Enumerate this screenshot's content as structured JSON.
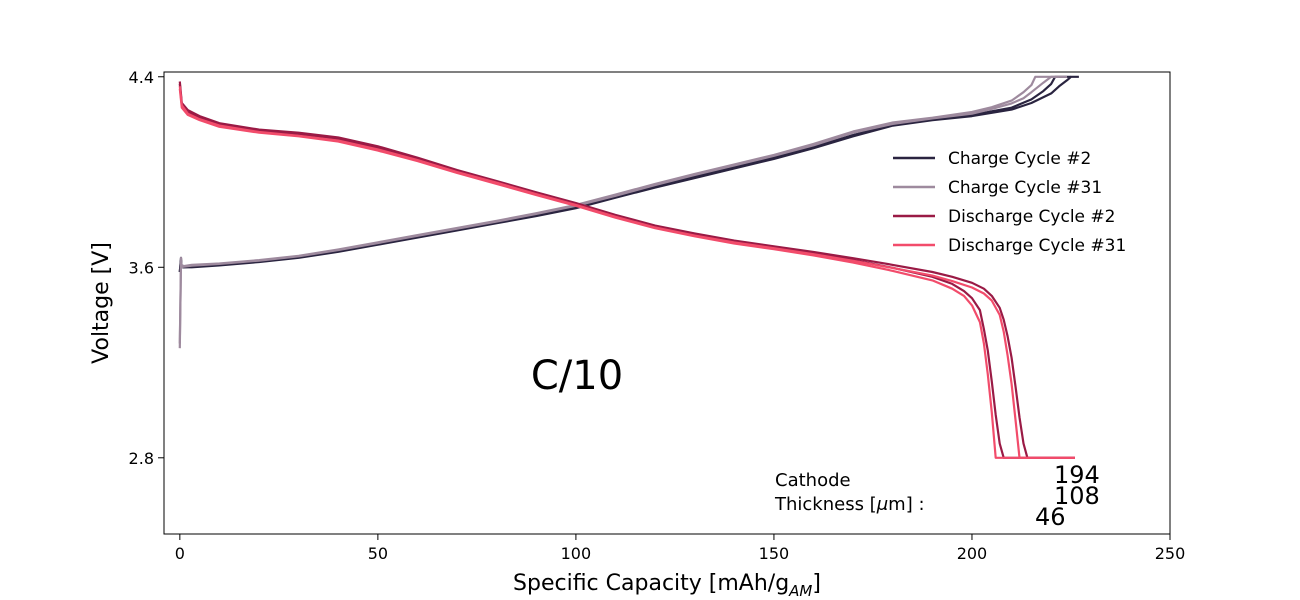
{
  "chart_data": {
    "type": "line",
    "title": "",
    "xlabel": "Specific Capacity [mAh/g",
    "xlabel_subscript": "AM",
    "xlabel_close": "]",
    "ylabel": "Voltage [V]",
    "xlim": [
      -4,
      250
    ],
    "ylim": [
      2.48,
      4.42
    ],
    "xticks": [
      0,
      50,
      100,
      150,
      200,
      250
    ],
    "yticks": [
      2.8,
      3.6,
      4.4
    ],
    "grid": false,
    "legend_position": "upper right",
    "annotation": "C/10",
    "thickness_label_line1": "Cathode",
    "thickness_label_line2": "Thickness [",
    "thickness_label_mu": "μ",
    "thickness_label_line2_end": "m] :",
    "thickness_values": [
      "194",
      "108",
      "46"
    ],
    "series": [
      {
        "name": "Charge Cycle #2",
        "color": "#2a2440",
        "variants": [
          {
            "x": [
              0,
              0.3,
              0.4,
              1,
              3,
              10,
              20,
              30,
              40,
              50,
              60,
              70,
              80,
              90,
              100,
              110,
              120,
              130,
              140,
              150,
              160,
              170,
              180,
              190,
              200,
              210,
              215,
              220,
              222,
              224,
              225,
              227
            ],
            "y": [
              3.58,
              3.64,
              3.61,
              3.6,
              3.6,
              3.608,
              3.622,
              3.64,
              3.665,
              3.695,
              3.725,
              3.755,
              3.785,
              3.815,
              3.848,
              3.892,
              3.935,
              3.975,
              4.015,
              4.055,
              4.1,
              4.15,
              4.195,
              4.218,
              4.235,
              4.262,
              4.29,
              4.33,
              4.36,
              4.385,
              4.4,
              4.4
            ]
          },
          {
            "x": [
              0,
              0.3,
              0.4,
              1,
              3,
              10,
              20,
              30,
              40,
              50,
              60,
              70,
              80,
              90,
              100,
              110,
              120,
              130,
              140,
              150,
              160,
              170,
              180,
              190,
              200,
              210,
              215,
              218,
              220,
              221,
              223,
              225
            ],
            "y": [
              3.58,
              3.63,
              3.6,
              3.6,
              3.603,
              3.61,
              3.625,
              3.643,
              3.668,
              3.698,
              3.728,
              3.758,
              3.788,
              3.818,
              3.852,
              3.896,
              3.94,
              3.98,
              4.02,
              4.06,
              4.105,
              4.155,
              4.198,
              4.222,
              4.24,
              4.27,
              4.305,
              4.34,
              4.37,
              4.4,
              4.4,
              4.4
            ]
          }
        ]
      },
      {
        "name": "Charge Cycle #31",
        "color": "#9e8a9e",
        "variants": [
          {
            "x": [
              0,
              0.3,
              0.4,
              1,
              3,
              10,
              20,
              30,
              40,
              50,
              60,
              70,
              80,
              90,
              100,
              110,
              120,
              130,
              140,
              150,
              160,
              170,
              180,
              190,
              200,
              205,
              210,
              213,
              215,
              216,
              218,
              222
            ],
            "y": [
              3.26,
              3.64,
              3.61,
              3.605,
              3.61,
              3.616,
              3.63,
              3.648,
              3.675,
              3.705,
              3.735,
              3.765,
              3.795,
              3.827,
              3.862,
              3.905,
              3.95,
              3.992,
              4.032,
              4.072,
              4.118,
              4.17,
              4.208,
              4.228,
              4.252,
              4.272,
              4.3,
              4.335,
              4.365,
              4.4,
              4.4,
              4.4
            ]
          },
          {
            "x": [
              0,
              0.3,
              0.4,
              1,
              3,
              10,
              20,
              30,
              40,
              50,
              60,
              70,
              80,
              90,
              100,
              110,
              120,
              130,
              140,
              150,
              160,
              170,
              180,
              190,
              200,
              205,
              210,
              213,
              215,
              218,
              220,
              224
            ],
            "y": [
              3.28,
              3.62,
              3.6,
              3.603,
              3.607,
              3.614,
              3.628,
              3.646,
              3.672,
              3.702,
              3.732,
              3.762,
              3.792,
              3.824,
              3.858,
              3.9,
              3.945,
              3.988,
              4.028,
              4.068,
              4.112,
              4.165,
              4.202,
              4.225,
              4.245,
              4.265,
              4.288,
              4.31,
              4.335,
              4.375,
              4.4,
              4.4
            ]
          }
        ]
      },
      {
        "name": "Discharge Cycle #2",
        "color": "#9a1a45",
        "variants": [
          {
            "x": [
              0,
              0.5,
              2,
              5,
              10,
              20,
              30,
              40,
              50,
              60,
              70,
              80,
              90,
              100,
              110,
              120,
              130,
              140,
              150,
              160,
              170,
              180,
              190,
              195,
              200,
              203,
              205,
              207,
              208,
              209,
              210,
              211,
              212,
              213,
              214,
              226
            ],
            "y": [
              4.38,
              4.29,
              4.26,
              4.235,
              4.205,
              4.178,
              4.165,
              4.145,
              4.108,
              4.06,
              4.008,
              3.962,
              3.915,
              3.87,
              3.82,
              3.775,
              3.742,
              3.712,
              3.688,
              3.664,
              3.638,
              3.61,
              3.58,
              3.56,
              3.535,
              3.51,
              3.48,
              3.43,
              3.38,
              3.31,
              3.22,
              3.1,
              2.97,
              2.86,
              2.8,
              2.8
            ]
          },
          {
            "x": [
              0,
              0.5,
              2,
              5,
              10,
              20,
              30,
              40,
              50,
              60,
              70,
              80,
              90,
              100,
              110,
              120,
              130,
              140,
              150,
              160,
              170,
              180,
              190,
              195,
              198,
              200,
              202,
              203,
              204,
              205,
              206,
              207,
              208,
              226
            ],
            "y": [
              4.37,
              4.28,
              4.25,
              4.23,
              4.2,
              4.175,
              4.16,
              4.14,
              4.102,
              4.054,
              4.002,
              3.956,
              3.91,
              3.866,
              3.818,
              3.772,
              3.74,
              3.71,
              3.685,
              3.66,
              3.63,
              3.598,
              3.56,
              3.53,
              3.5,
              3.47,
              3.42,
              3.34,
              3.25,
              3.12,
              2.98,
              2.86,
              2.8,
              2.8
            ]
          }
        ]
      },
      {
        "name": "Discharge Cycle #31",
        "color": "#f24c6b",
        "variants": [
          {
            "x": [
              0,
              0.5,
              2,
              5,
              10,
              20,
              30,
              40,
              50,
              60,
              70,
              80,
              90,
              100,
              110,
              120,
              130,
              140,
              150,
              160,
              170,
              180,
              190,
              195,
              200,
              203,
              205,
              207,
              208,
              209,
              210,
              211,
              212,
              226
            ],
            "y": [
              4.36,
              4.28,
              4.245,
              4.222,
              4.195,
              4.168,
              4.152,
              4.132,
              4.095,
              4.05,
              4.0,
              3.955,
              3.907,
              3.862,
              3.812,
              3.767,
              3.733,
              3.704,
              3.68,
              3.655,
              3.627,
              3.597,
              3.565,
              3.542,
              3.515,
              3.49,
              3.46,
              3.4,
              3.33,
              3.23,
              3.11,
              2.96,
              2.8,
              2.8
            ]
          },
          {
            "x": [
              0,
              0.5,
              2,
              5,
              10,
              20,
              30,
              40,
              50,
              60,
              70,
              80,
              90,
              100,
              110,
              120,
              130,
              140,
              150,
              160,
              170,
              180,
              190,
              195,
              198,
              200,
              202,
              203,
              204,
              205,
              206,
              226
            ],
            "y": [
              4.35,
              4.27,
              4.24,
              4.218,
              4.19,
              4.165,
              4.15,
              4.128,
              4.09,
              4.046,
              3.996,
              3.95,
              3.903,
              3.858,
              3.808,
              3.764,
              3.73,
              3.7,
              3.676,
              3.65,
              3.62,
              3.585,
              3.545,
              3.51,
              3.48,
              3.44,
              3.37,
              3.28,
              3.15,
              2.99,
              2.8,
              2.8
            ]
          }
        ]
      }
    ]
  }
}
